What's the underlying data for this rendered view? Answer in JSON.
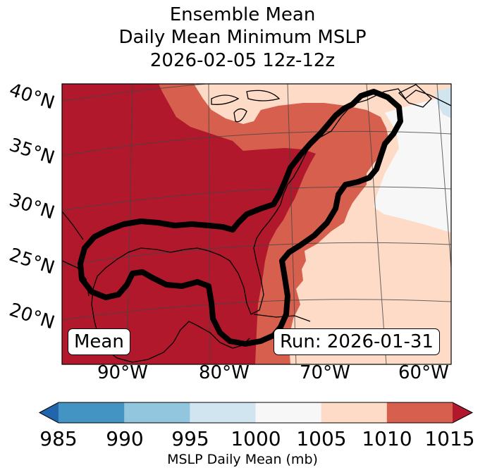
{
  "title": {
    "line1": "Ensemble Mean",
    "line2": "Daily Mean Minimum MSLP",
    "line3": "2026-02-05 12z-12z"
  },
  "map": {
    "lat_labels": [
      "40°N",
      "35°N",
      "30°N",
      "25°N",
      "20°N"
    ],
    "lon_labels": [
      "90°W",
      "80°W",
      "70°W",
      "60°W"
    ],
    "mean_label": "Mean",
    "run_label": "Run: 2026-01-31",
    "contour_color": "#000000"
  },
  "colorbar": {
    "label": "MSLP Daily Mean (mb)",
    "ticks": [
      "985",
      "990",
      "995",
      "1000",
      "1005",
      "1010",
      "1015"
    ],
    "bins": [
      {
        "range": "<985",
        "color": "#2166ac"
      },
      {
        "range": "985-990",
        "color": "#4393c3"
      },
      {
        "range": "990-995",
        "color": "#92c5de"
      },
      {
        "range": "995-1000",
        "color": "#d1e5f0"
      },
      {
        "range": "1000-1005",
        "color": "#f7f7f7"
      },
      {
        "range": "1005-1010",
        "color": "#fddbc7"
      },
      {
        "range": "1010-1015",
        "color": "#d6604d"
      },
      {
        "range": ">1015",
        "color": "#b2182b"
      }
    ]
  }
}
